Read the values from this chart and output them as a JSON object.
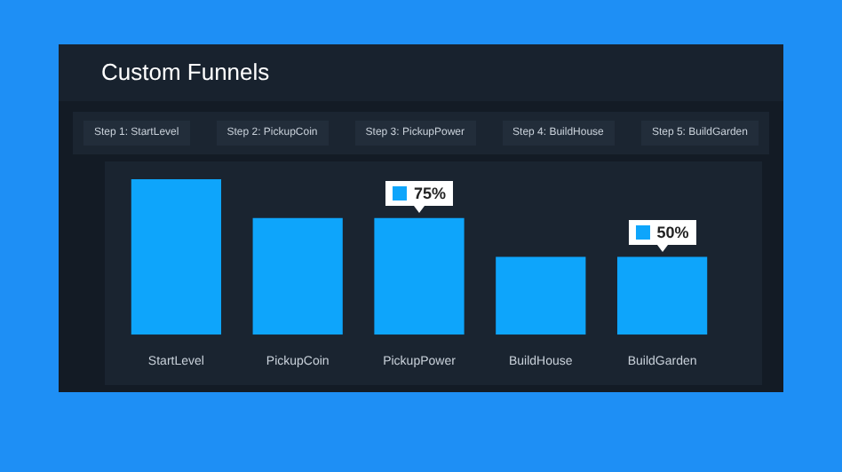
{
  "chart_data": {
    "type": "bar",
    "title": "Custom Funnels",
    "annotations": [
      "Step 1: StartLevel",
      "Step 2: PickupCoin",
      "Step 3: PickupPower",
      "Step 4: BuildHouse",
      "Step 5: BuildGarden"
    ],
    "categories": [
      "StartLevel",
      "PickupCoin",
      "PickupPower",
      "BuildHouse",
      "BuildGarden"
    ],
    "values": [
      100,
      75,
      75,
      50,
      50
    ],
    "ylim": [
      0,
      100
    ],
    "tick_labels": "x",
    "value_labels": [
      null,
      null,
      "75%",
      null,
      "50%"
    ],
    "color": "#0ea5fb"
  }
}
